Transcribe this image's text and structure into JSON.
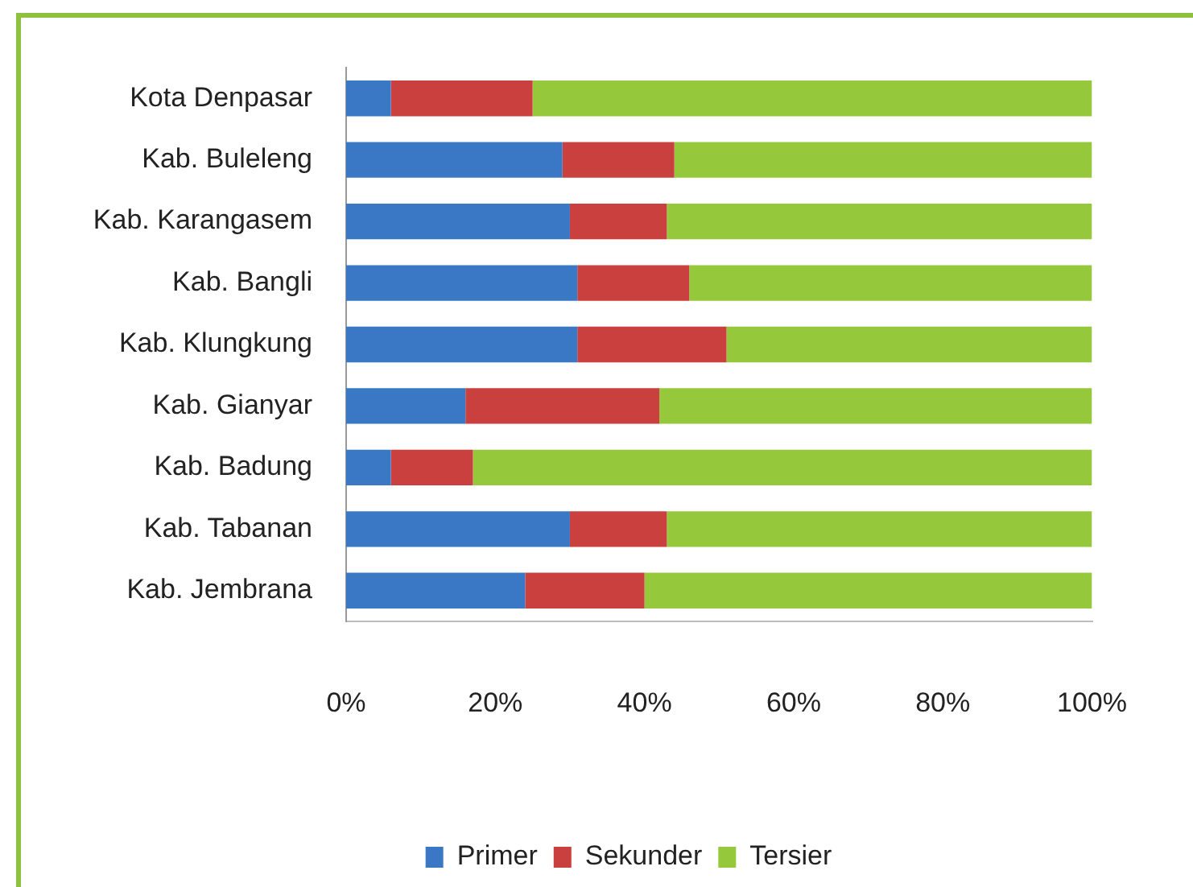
{
  "chart_data": {
    "type": "bar",
    "orientation": "horizontal",
    "stacked": true,
    "categories": [
      "Kota Denpasar",
      "Kab. Buleleng",
      "Kab. Karangasem",
      "Kab. Bangli",
      "Kab. Klungkung",
      "Kab. Gianyar",
      "Kab. Badung",
      "Kab. Tabanan",
      "Kab. Jembrana"
    ],
    "series": [
      {
        "name": "Primer",
        "color": "#3a78c6",
        "values": [
          6,
          29,
          30,
          31,
          31,
          16,
          6,
          30,
          24
        ]
      },
      {
        "name": "Sekunder",
        "color": "#c9403f",
        "values": [
          19,
          15,
          13,
          15,
          20,
          26,
          11,
          13,
          16
        ]
      },
      {
        "name": "Tersier",
        "color": "#96c83c",
        "values": [
          75,
          56,
          57,
          54,
          49,
          58,
          83,
          57,
          60
        ]
      }
    ],
    "xlim": [
      0,
      100
    ],
    "xticks": [
      {
        "value": 0,
        "label": "0%"
      },
      {
        "value": 20,
        "label": "20%"
      },
      {
        "value": 40,
        "label": "40%"
      },
      {
        "value": 60,
        "label": "60%"
      },
      {
        "value": 80,
        "label": "80%"
      },
      {
        "value": 100,
        "label": "100%"
      }
    ],
    "grid": false,
    "legend": "bottom"
  }
}
